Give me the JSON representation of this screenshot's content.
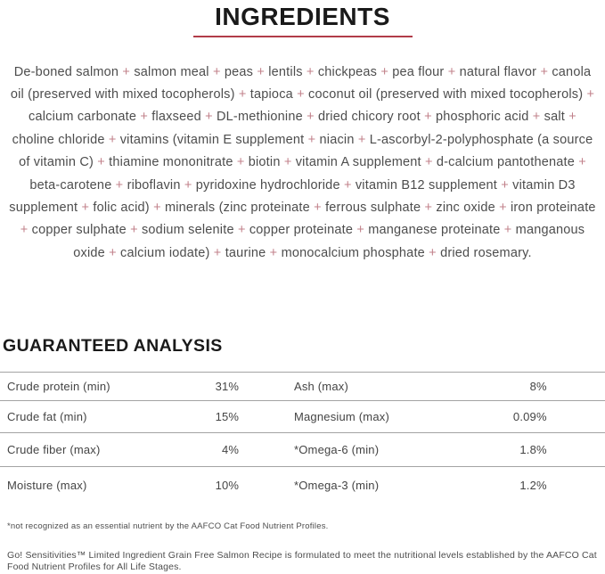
{
  "ingredients": {
    "title": "INGREDIENTS",
    "separator": "+",
    "items": [
      "De-boned salmon",
      "salmon meal",
      "peas",
      "lentils",
      "chickpeas",
      "pea flour",
      "natural flavor",
      "canola oil (preserved with mixed tocopherols)",
      "tapioca",
      "coconut oil (preserved with mixed tocopherols)",
      "calcium carbonate",
      "flaxseed",
      "DL-methionine",
      "dried chicory root",
      "phosphoric acid",
      "salt",
      "choline chloride",
      "vitamins (vitamin E supplement",
      "niacin",
      "L-ascorbyl-2-polyphosphate (a source of vitamin C)",
      "thiamine mononitrate",
      "biotin",
      "vitamin A supplement",
      "d-calcium pantothenate",
      "beta-carotene",
      "riboflavin",
      "pyridoxine hydrochloride",
      "vitamin B12 supplement",
      "vitamin D3 supplement",
      "folic acid)",
      "minerals (zinc proteinate",
      "ferrous sulphate",
      "zinc oxide",
      "iron proteinate",
      "copper sulphate",
      "sodium selenite",
      "copper proteinate",
      "manganese proteinate",
      "manganous oxide",
      "calcium iodate)",
      "taurine",
      "monocalcium phosphate",
      "dried rosemary."
    ]
  },
  "analysis": {
    "title": "GUARANTEED ANALYSIS",
    "rows": [
      {
        "left_label": "Crude protein (min)",
        "left_value": "31%",
        "right_label": "Ash (max)",
        "right_value": "8%"
      },
      {
        "left_label": "Crude fat (min)",
        "left_value": "15%",
        "right_label": "Magnesium (max)",
        "right_value": "0.09%"
      },
      {
        "left_label": "Crude fiber (max)",
        "left_value": "4%",
        "right_label": "*Omega-6 (min)",
        "right_value": "1.8%"
      },
      {
        "left_label": "Moisture (max)",
        "left_value": "10%",
        "right_label": "*Omega-3 (min)",
        "right_value": "1.2%"
      }
    ],
    "footnote": "*not recognized as an essential nutrient by the AAFCO Cat Food Nutrient Profiles."
  },
  "statement": "Go! Sensitivities™ Limited Ingredient Grain Free Salmon Recipe is formulated to meet the nutritional levels established by the AAFCO Cat Food Nutrient Profiles for All Life Stages.",
  "colors": {
    "accent_red": "#b13c49",
    "plus_pink": "#c1808a",
    "body_gray": "#4d4d4d",
    "heading_black": "#1a1a1a",
    "border_gray": "#a3a3a3"
  }
}
